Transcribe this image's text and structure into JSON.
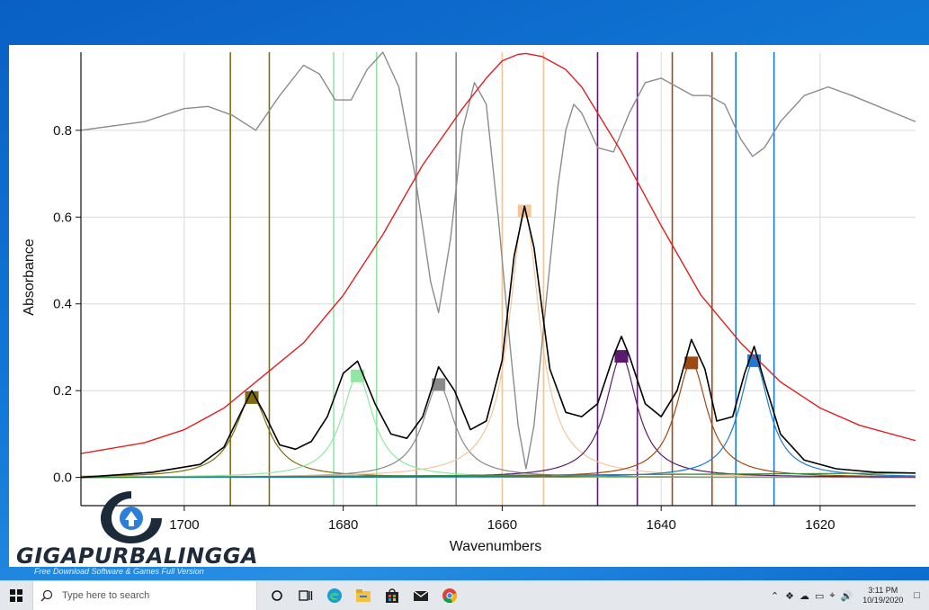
{
  "chart_data": {
    "type": "line",
    "title": "",
    "xlabel": "Wavenumbers",
    "ylabel": "Absorbance",
    "xlim": [
      1713,
      1608
    ],
    "ylim": [
      -0.065,
      0.98
    ],
    "x_reversed": true,
    "x_ticks": [
      1700,
      1680,
      1660,
      1640,
      1620
    ],
    "y_ticks": [
      0.0,
      0.2,
      0.4,
      0.6,
      0.8
    ],
    "x_tick_labels": [
      "1700",
      "1680",
      "1660",
      "1640",
      "1620"
    ],
    "y_tick_labels": [
      "0.0",
      "0.2",
      "0.4",
      "0.6",
      "0.8"
    ],
    "grid": true,
    "peaks": [
      {
        "center": 1691.5,
        "height": 0.185,
        "width": 2.6,
        "color": "#7f6d10",
        "bounds": [
          1694.2,
          1689.3
        ]
      },
      {
        "center": 1678.2,
        "height": 0.235,
        "width": 2.4,
        "color": "#92e6a4",
        "bounds": [
          1681.2,
          1675.8
        ]
      },
      {
        "center": 1668.0,
        "height": 0.215,
        "width": 2.4,
        "color": "#8a8a8a",
        "bounds": [
          1670.8,
          1665.8
        ]
      },
      {
        "center": 1657.2,
        "height": 0.615,
        "width": 2.3,
        "color": "#f5c59a",
        "bounds": [
          1660.0,
          1654.8
        ]
      },
      {
        "center": 1645.0,
        "height": 0.28,
        "width": 2.4,
        "color": "#5a1a6e",
        "bounds": [
          1648.0,
          1643.0
        ]
      },
      {
        "center": 1636.2,
        "height": 0.265,
        "width": 2.4,
        "color": "#9c4a14",
        "bounds": [
          1638.6,
          1633.6
        ]
      },
      {
        "center": 1628.3,
        "height": 0.27,
        "width": 2.3,
        "color": "#1c7ad4",
        "bounds": [
          1630.6,
          1625.8
        ]
      }
    ],
    "baseline": [
      {
        "x": 1713,
        "y": 0.0
      },
      {
        "x": 1608,
        "y": 0.01
      }
    ],
    "series": [
      {
        "color": "#000000",
        "x": [
          1713,
          1704,
          1698,
          1695,
          1693,
          1691.5,
          1690,
          1688,
          1686,
          1684,
          1682,
          1680,
          1678.2,
          1676,
          1674,
          1672,
          1670,
          1668,
          1666,
          1664,
          1662,
          1660,
          1658.5,
          1657.2,
          1656,
          1654,
          1652,
          1650,
          1648,
          1646,
          1645,
          1644,
          1642,
          1640,
          1638,
          1636.2,
          1634.5,
          1633,
          1631,
          1629.5,
          1628.3,
          1627,
          1625,
          1622,
          1618,
          1613,
          1608
        ],
        "y": [
          0.0,
          0.012,
          0.03,
          0.07,
          0.145,
          0.2,
          0.15,
          0.075,
          0.065,
          0.083,
          0.14,
          0.24,
          0.268,
          0.17,
          0.1,
          0.09,
          0.14,
          0.255,
          0.2,
          0.11,
          0.13,
          0.27,
          0.51,
          0.625,
          0.53,
          0.25,
          0.15,
          0.14,
          0.17,
          0.28,
          0.325,
          0.28,
          0.17,
          0.14,
          0.2,
          0.318,
          0.25,
          0.13,
          0.14,
          0.24,
          0.302,
          0.22,
          0.1,
          0.04,
          0.02,
          0.012,
          0.01
        ]
      },
      {
        "color": "#e02020",
        "x": [
          1713,
          1705,
          1700,
          1695,
          1690,
          1685,
          1680,
          1675,
          1670,
          1665,
          1662,
          1660,
          1658,
          1657,
          1655,
          1652,
          1650,
          1645,
          1640,
          1635,
          1630,
          1625,
          1620,
          1615,
          1608
        ],
        "y": [
          0.055,
          0.08,
          0.11,
          0.16,
          0.235,
          0.31,
          0.42,
          0.56,
          0.72,
          0.85,
          0.92,
          0.96,
          0.975,
          0.977,
          0.97,
          0.94,
          0.9,
          0.75,
          0.58,
          0.42,
          0.31,
          0.22,
          0.16,
          0.12,
          0.085
        ]
      },
      {
        "color": "#8c8c8c",
        "x": [
          1713,
          1705,
          1700,
          1697,
          1694,
          1691,
          1688,
          1685,
          1683,
          1681,
          1679,
          1677,
          1675,
          1673,
          1671,
          1669,
          1668,
          1666.5,
          1665,
          1663.5,
          1662,
          1660.5,
          1659,
          1658,
          1657,
          1656,
          1654.5,
          1653,
          1652,
          1651,
          1650,
          1648,
          1646,
          1644,
          1642,
          1640,
          1638,
          1636,
          1634,
          1632,
          1630,
          1628.5,
          1627,
          1625,
          1622,
          1619,
          1616,
          1612,
          1608
        ],
        "y": [
          0.8,
          0.82,
          0.85,
          0.855,
          0.835,
          0.8,
          0.88,
          0.95,
          0.93,
          0.87,
          0.87,
          0.94,
          0.98,
          0.9,
          0.7,
          0.45,
          0.38,
          0.55,
          0.8,
          0.91,
          0.86,
          0.6,
          0.3,
          0.12,
          0.02,
          0.12,
          0.4,
          0.67,
          0.8,
          0.86,
          0.84,
          0.76,
          0.75,
          0.84,
          0.91,
          0.92,
          0.9,
          0.88,
          0.88,
          0.86,
          0.78,
          0.74,
          0.76,
          0.82,
          0.88,
          0.9,
          0.88,
          0.85,
          0.82
        ]
      }
    ]
  },
  "watermark": {
    "title": "GIGAPURBALINGGA",
    "subtitle": "Free Download Software & Games Full Version"
  },
  "taskbar": {
    "search_placeholder": "Type here to search",
    "time": "3:11 PM",
    "date": "10/19/2020"
  }
}
